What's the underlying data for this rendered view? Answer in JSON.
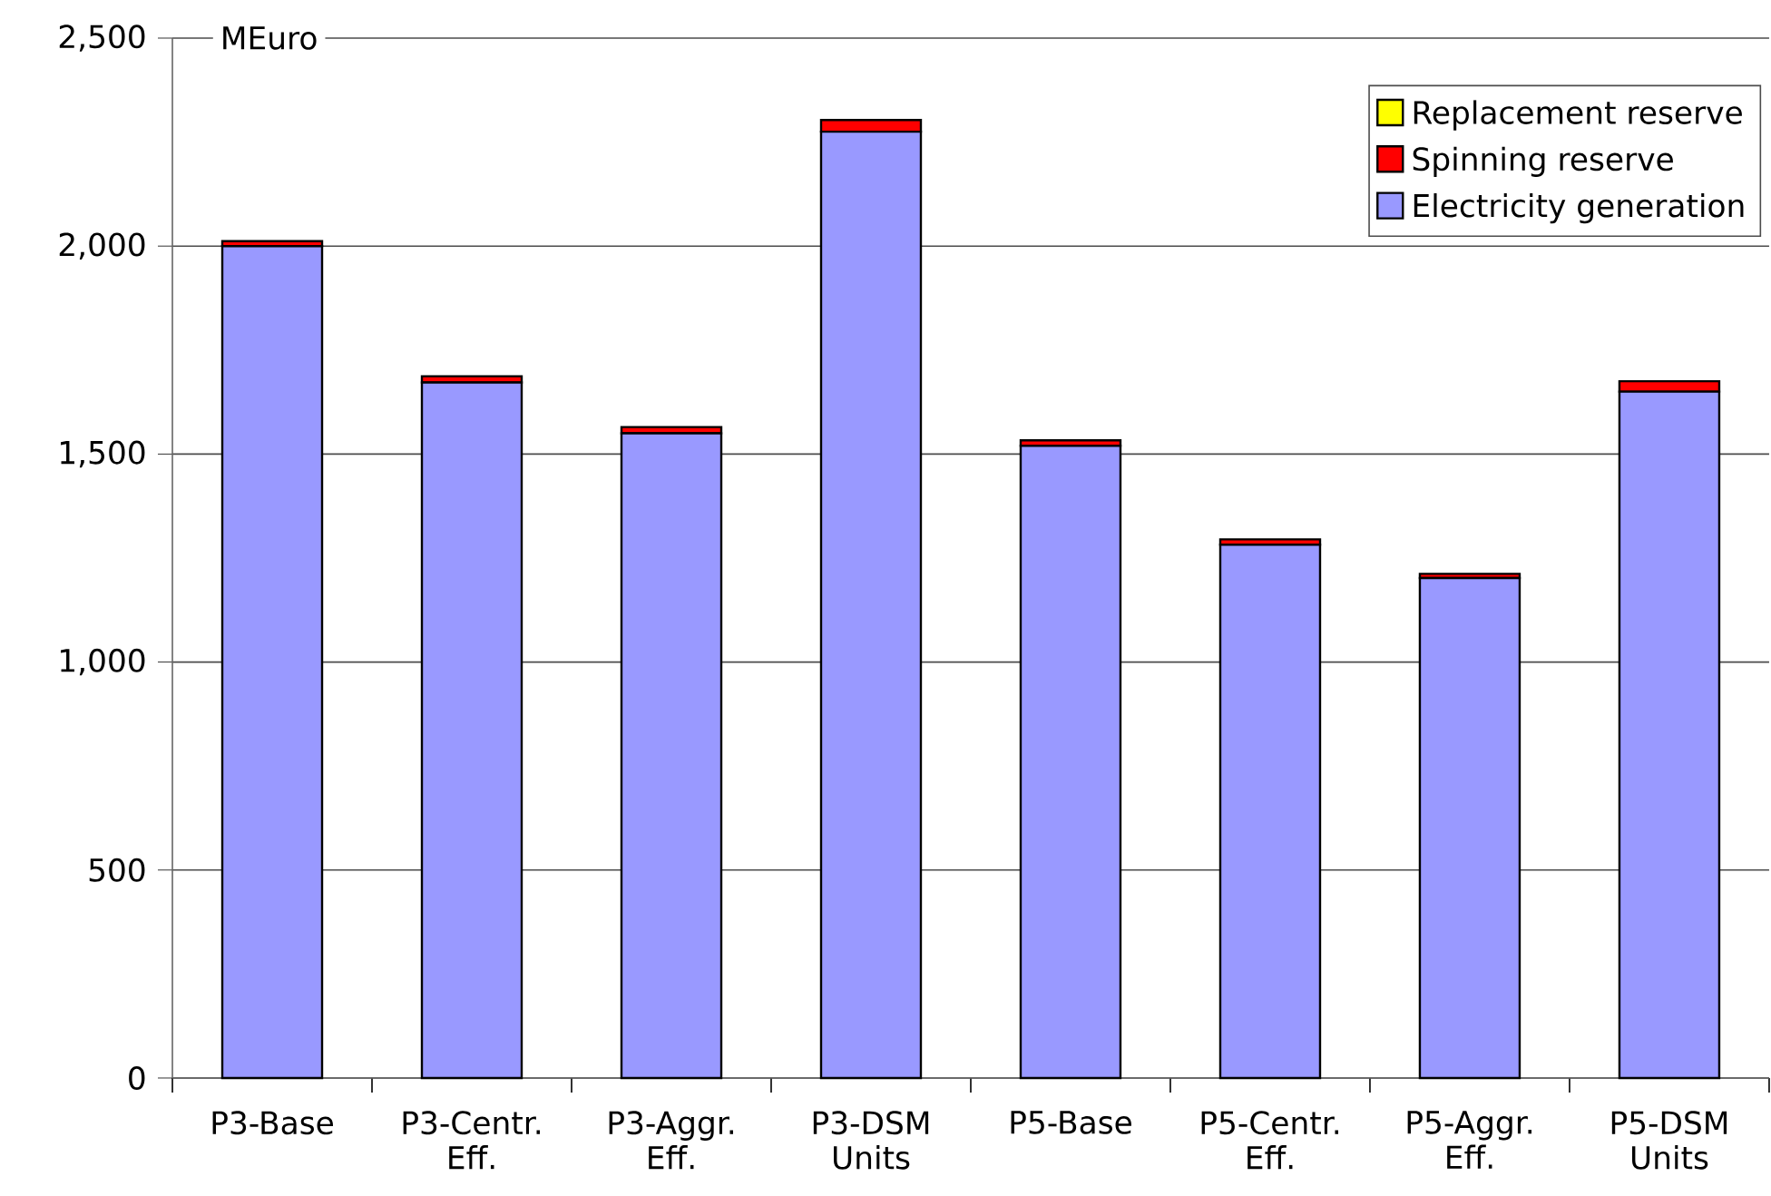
{
  "chart_data": {
    "type": "bar",
    "stacked": true,
    "ylabel": "MEuro",
    "categories": [
      "P3-Base",
      "P3-Centr. Eff.",
      "P3-Aggr. Eff.",
      "P3-DSM Units",
      "P5-Base",
      "P5-Centr. Eff.",
      "P5-Aggr. Eff.",
      "P5-DSM Units"
    ],
    "series": [
      {
        "name": "Electricity generation",
        "color": "#9999ff",
        "values": [
          2000,
          1672,
          1550,
          2275,
          1520,
          1282,
          1202,
          1650
        ]
      },
      {
        "name": "Spinning reserve",
        "color": "#ff0000",
        "values": [
          12,
          15,
          15,
          28,
          13,
          13,
          10,
          25
        ]
      },
      {
        "name": "Replacement reserve",
        "color": "#ffff00",
        "values": [
          0,
          0,
          0,
          0,
          0,
          0,
          0,
          0
        ]
      }
    ],
    "ylim": [
      0,
      2500
    ],
    "yticks": [
      {
        "value": 0,
        "label": "0"
      },
      {
        "value": 500,
        "label": "500"
      },
      {
        "value": 1000,
        "label": "1,000"
      },
      {
        "value": 1500,
        "label": "1,500"
      },
      {
        "value": 2000,
        "label": "2,000"
      },
      {
        "value": 2500,
        "label": "2,500"
      }
    ],
    "grid": "y",
    "legend": "top right"
  }
}
